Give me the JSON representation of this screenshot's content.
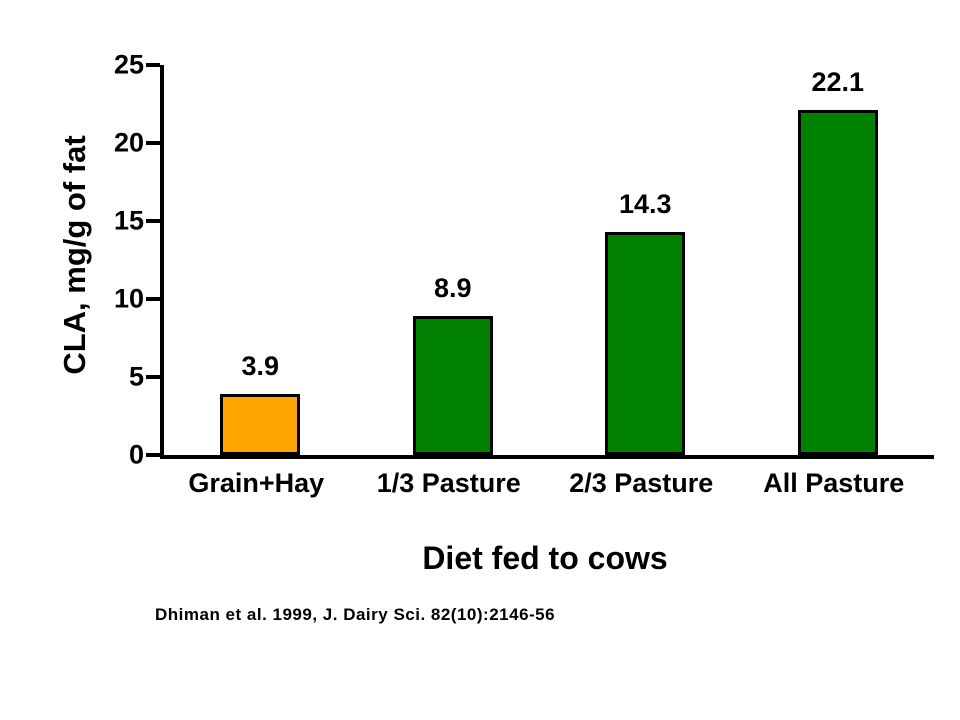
{
  "chart_data": {
    "type": "bar",
    "categories": [
      "Grain+Hay",
      "1/3 Pasture",
      "2/3 Pasture",
      "All Pasture"
    ],
    "values": [
      3.9,
      8.9,
      14.3,
      22.1
    ],
    "value_labels": [
      "3.9",
      "8.9",
      "14.3",
      "22.1"
    ],
    "bar_colors": [
      "#FFA500",
      "#008000",
      "#008000",
      "#008000"
    ],
    "bar_border_color": "#000000",
    "title": "",
    "xlabel": "Diet fed to cows",
    "ylabel": "CLA, mg/g of fat",
    "ylim": [
      0,
      25
    ],
    "yticks": [
      0,
      5,
      10,
      15,
      20,
      25
    ],
    "grid": false,
    "legend": false
  },
  "citation": "Dhiman et al. 1999, J. Dairy Sci. 82(10):2146-56"
}
